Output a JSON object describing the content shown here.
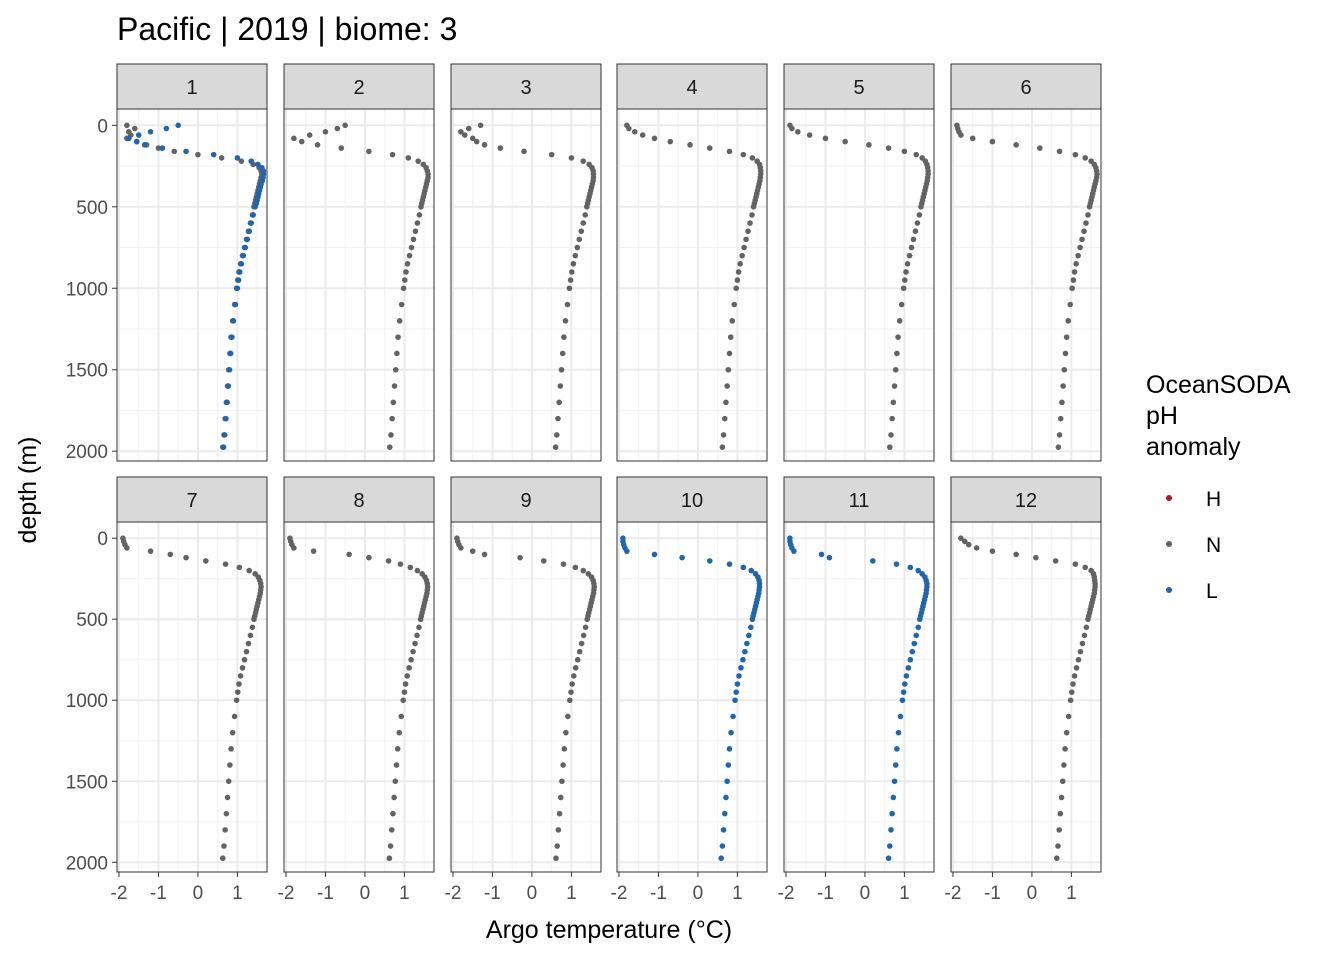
{
  "chart_data": {
    "type": "scatter",
    "title": "Pacific | 2019 | biome: 3",
    "xlabel": "Argo temperature (°C)",
    "ylabel": "depth (m)",
    "xlim": [
      -2.05,
      1.75
    ],
    "ylim": [
      2060,
      -100
    ],
    "x_ticks": [
      -2,
      -1,
      0,
      1
    ],
    "x_tick_labels": [
      "-2",
      "-1",
      "0",
      "1"
    ],
    "y_ticks": [
      0,
      500,
      1000,
      1500,
      2000
    ],
    "y_tick_labels": [
      "0",
      "500",
      "1000",
      "1500",
      "2000"
    ],
    "y_reversed": true,
    "grid": true,
    "facet_layout": {
      "rows": 2,
      "cols": 6
    },
    "legend": {
      "title": [
        "OceanSODA",
        "pH",
        "anomaly"
      ],
      "position": "right",
      "entries": [
        {
          "key": "H",
          "label": "H",
          "color": "#b2182b"
        },
        {
          "key": "N",
          "label": "N",
          "color": "#636363"
        },
        {
          "key": "L",
          "label": "L",
          "color": "#2166ac"
        }
      ]
    },
    "profile_depths": [
      0,
      20,
      40,
      60,
      80,
      100,
      120,
      140,
      160,
      180,
      200,
      220,
      240,
      260,
      280,
      300,
      320,
      340,
      360,
      380,
      400,
      420,
      440,
      460,
      480,
      500,
      550,
      600,
      650,
      700,
      750,
      800,
      850,
      900,
      950,
      1000,
      1100,
      1200,
      1300,
      1400,
      1500,
      1600,
      1700,
      1800,
      1900,
      1975
    ],
    "panels": [
      {
        "label": "1",
        "temps": [
          -1.8,
          -1.8,
          -1.75,
          -1.8,
          -1.7,
          -1.5,
          -1.3,
          -1.0,
          -0.5,
          0.2,
          0.9,
          1.3,
          1.5,
          1.6,
          1.65,
          1.66,
          1.65,
          1.62,
          1.6,
          1.58,
          1.56,
          1.54,
          1.52,
          1.5,
          1.48,
          1.45,
          1.4,
          1.35,
          1.3,
          1.25,
          1.2,
          1.15,
          1.1,
          1.06,
          1.03,
          1.0,
          0.95,
          0.9,
          0.86,
          0.83,
          0.8,
          0.77,
          0.74,
          0.71,
          0.68,
          0.65
        ],
        "series": [
          {
            "key": "N",
            "temps": [
              -1.8,
              -1.6,
              -1.75,
              -1.7,
              -1.8,
              -1.55,
              -1.3,
              -1.0,
              -0.6,
              0.0,
              0.6,
              1.1,
              1.4,
              1.55,
              1.6,
              1.62,
              1.6,
              1.58,
              1.56,
              1.54,
              1.52,
              1.5,
              1.48,
              1.46,
              1.44,
              1.42,
              1.38,
              1.33,
              1.28,
              1.23,
              1.18,
              1.13,
              1.08,
              1.04,
              1.01,
              0.98,
              0.93,
              0.88,
              0.84,
              0.81,
              0.78,
              0.75,
              0.72,
              0.69,
              0.66,
              0.63
            ]
          },
          {
            "key": "L",
            "temps": [
              -0.5,
              -0.8,
              -1.2,
              -1.5,
              -1.75,
              -1.55,
              -1.35,
              -0.9,
              -0.3,
              0.4,
              1.0,
              1.35,
              1.52,
              1.62,
              1.66,
              1.66,
              1.65,
              1.63,
              1.6,
              1.58,
              1.56,
              1.54,
              1.52,
              1.5,
              1.48,
              1.45,
              1.4,
              1.35,
              1.3,
              1.25,
              1.2,
              1.15,
              1.1,
              1.06,
              1.03,
              1.0,
              0.95,
              0.9,
              0.86,
              0.83,
              0.8,
              0.77,
              0.74,
              0.71,
              0.68,
              0.65
            ]
          }
        ]
      },
      {
        "label": "2",
        "series": [
          {
            "key": "N",
            "temps": [
              -0.5,
              -0.7,
              -1.0,
              -1.4,
              -1.8,
              -1.6,
              -1.2,
              -0.6,
              0.1,
              0.7,
              1.1,
              1.35,
              1.48,
              1.55,
              1.58,
              1.6,
              1.6,
              1.58,
              1.56,
              1.54,
              1.52,
              1.5,
              1.48,
              1.46,
              1.44,
              1.42,
              1.38,
              1.33,
              1.28,
              1.23,
              1.18,
              1.13,
              1.08,
              1.04,
              1.01,
              0.98,
              0.93,
              0.88,
              0.84,
              0.81,
              0.78,
              0.75,
              0.72,
              0.69,
              0.66,
              0.63
            ]
          }
        ]
      },
      {
        "label": "3",
        "series": [
          {
            "key": "N",
            "temps": [
              -1.3,
              -1.6,
              -1.8,
              -1.7,
              -1.5,
              -1.4,
              -1.2,
              -0.8,
              -0.2,
              0.5,
              1.0,
              1.3,
              1.45,
              1.52,
              1.55,
              1.56,
              1.56,
              1.55,
              1.53,
              1.51,
              1.49,
              1.47,
              1.45,
              1.43,
              1.41,
              1.39,
              1.35,
              1.3,
              1.25,
              1.2,
              1.15,
              1.1,
              1.05,
              1.01,
              0.98,
              0.95,
              0.9,
              0.85,
              0.81,
              0.78,
              0.75,
              0.72,
              0.69,
              0.66,
              0.63,
              0.6
            ]
          }
        ]
      },
      {
        "label": "4",
        "series": [
          {
            "key": "N",
            "temps": [
              -1.8,
              -1.75,
              -1.6,
              -1.4,
              -1.1,
              -0.7,
              -0.2,
              0.3,
              0.8,
              1.15,
              1.38,
              1.5,
              1.56,
              1.58,
              1.59,
              1.59,
              1.58,
              1.57,
              1.55,
              1.53,
              1.51,
              1.49,
              1.47,
              1.45,
              1.43,
              1.41,
              1.37,
              1.32,
              1.27,
              1.22,
              1.17,
              1.12,
              1.07,
              1.03,
              1.0,
              0.97,
              0.92,
              0.87,
              0.83,
              0.8,
              0.77,
              0.74,
              0.71,
              0.68,
              0.65,
              0.62
            ]
          }
        ]
      },
      {
        "label": "5",
        "series": [
          {
            "key": "N",
            "temps": [
              -1.9,
              -1.85,
              -1.7,
              -1.4,
              -1.0,
              -0.5,
              0.1,
              0.6,
              1.0,
              1.3,
              1.45,
              1.53,
              1.57,
              1.59,
              1.6,
              1.6,
              1.59,
              1.58,
              1.56,
              1.54,
              1.52,
              1.5,
              1.48,
              1.46,
              1.44,
              1.42,
              1.38,
              1.33,
              1.28,
              1.23,
              1.18,
              1.13,
              1.08,
              1.04,
              1.01,
              0.98,
              0.93,
              0.88,
              0.84,
              0.81,
              0.78,
              0.75,
              0.72,
              0.69,
              0.66,
              0.63
            ]
          }
        ]
      },
      {
        "label": "6",
        "series": [
          {
            "key": "N",
            "temps": [
              -1.9,
              -1.88,
              -1.85,
              -1.8,
              -1.5,
              -1.0,
              -0.4,
              0.2,
              0.7,
              1.1,
              1.35,
              1.5,
              1.58,
              1.62,
              1.64,
              1.65,
              1.64,
              1.62,
              1.6,
              1.58,
              1.56,
              1.54,
              1.52,
              1.5,
              1.48,
              1.46,
              1.42,
              1.37,
              1.32,
              1.27,
              1.22,
              1.17,
              1.12,
              1.08,
              1.05,
              1.02,
              0.97,
              0.92,
              0.88,
              0.85,
              0.82,
              0.79,
              0.76,
              0.73,
              0.7,
              0.67
            ]
          }
        ]
      },
      {
        "label": "7",
        "series": [
          {
            "key": "N",
            "temps": [
              -1.9,
              -1.88,
              -1.85,
              -1.8,
              -1.2,
              -0.7,
              -0.3,
              0.2,
              0.7,
              1.05,
              1.3,
              1.45,
              1.53,
              1.57,
              1.59,
              1.6,
              1.59,
              1.58,
              1.56,
              1.54,
              1.52,
              1.5,
              1.48,
              1.46,
              1.44,
              1.42,
              1.38,
              1.33,
              1.28,
              1.23,
              1.18,
              1.13,
              1.08,
              1.04,
              1.01,
              0.98,
              0.93,
              0.88,
              0.84,
              0.81,
              0.78,
              0.75,
              0.72,
              0.69,
              0.66,
              0.63
            ]
          }
        ]
      },
      {
        "label": "8",
        "series": [
          {
            "key": "N",
            "temps": [
              -1.9,
              -1.88,
              -1.85,
              -1.8,
              -1.3,
              -0.4,
              0.1,
              0.6,
              0.9,
              1.15,
              1.33,
              1.45,
              1.52,
              1.56,
              1.58,
              1.59,
              1.58,
              1.57,
              1.55,
              1.53,
              1.51,
              1.49,
              1.47,
              1.45,
              1.43,
              1.41,
              1.37,
              1.32,
              1.27,
              1.22,
              1.17,
              1.12,
              1.07,
              1.03,
              1.0,
              0.97,
              0.92,
              0.87,
              0.83,
              0.8,
              0.77,
              0.74,
              0.71,
              0.68,
              0.65,
              0.62
            ]
          }
        ]
      },
      {
        "label": "9",
        "series": [
          {
            "key": "N",
            "temps": [
              -1.9,
              -1.88,
              -1.85,
              -1.8,
              -1.5,
              -1.2,
              -0.3,
              0.3,
              0.8,
              1.1,
              1.3,
              1.43,
              1.51,
              1.55,
              1.57,
              1.58,
              1.57,
              1.56,
              1.54,
              1.52,
              1.5,
              1.48,
              1.46,
              1.44,
              1.42,
              1.4,
              1.36,
              1.31,
              1.26,
              1.21,
              1.16,
              1.11,
              1.06,
              1.02,
              0.99,
              0.96,
              0.91,
              0.86,
              0.82,
              0.79,
              0.76,
              0.73,
              0.7,
              0.67,
              0.64,
              0.61
            ]
          }
        ]
      },
      {
        "label": "10",
        "series": [
          {
            "key": "L",
            "temps": [
              -1.9,
              -1.9,
              -1.88,
              -1.85,
              -1.8,
              -1.1,
              -0.4,
              0.3,
              0.8,
              1.15,
              1.35,
              1.46,
              1.52,
              1.55,
              1.56,
              1.56,
              1.55,
              1.54,
              1.52,
              1.5,
              1.48,
              1.46,
              1.44,
              1.42,
              1.4,
              1.38,
              1.34,
              1.29,
              1.24,
              1.19,
              1.14,
              1.09,
              1.04,
              1.0,
              0.97,
              0.94,
              0.89,
              0.84,
              0.8,
              0.77,
              0.74,
              0.71,
              0.68,
              0.65,
              0.62,
              0.59
            ]
          }
        ]
      },
      {
        "label": "11",
        "series": [
          {
            "key": "L",
            "temps": [
              -1.9,
              -1.9,
              -1.88,
              -1.85,
              -1.8,
              -1.1,
              -0.9,
              0.2,
              0.8,
              1.15,
              1.35,
              1.45,
              1.52,
              1.55,
              1.57,
              1.57,
              1.56,
              1.55,
              1.53,
              1.51,
              1.49,
              1.47,
              1.45,
              1.43,
              1.41,
              1.39,
              1.35,
              1.3,
              1.25,
              1.2,
              1.15,
              1.1,
              1.05,
              1.01,
              0.98,
              0.95,
              0.9,
              0.85,
              0.81,
              0.78,
              0.75,
              0.72,
              0.69,
              0.66,
              0.63,
              0.6
            ]
          }
        ]
      },
      {
        "label": "12",
        "series": [
          {
            "key": "N",
            "temps": [
              -1.8,
              -1.7,
              -1.6,
              -1.4,
              -1.0,
              -0.4,
              0.1,
              0.6,
              1.1,
              1.35,
              1.5,
              1.56,
              1.58,
              1.59,
              1.6,
              1.6,
              1.59,
              1.58,
              1.56,
              1.54,
              1.52,
              1.5,
              1.48,
              1.46,
              1.44,
              1.42,
              1.38,
              1.33,
              1.28,
              1.23,
              1.18,
              1.13,
              1.08,
              1.04,
              1.01,
              0.98,
              0.93,
              0.88,
              0.84,
              0.81,
              0.78,
              0.75,
              0.72,
              0.69,
              0.66,
              0.63
            ]
          }
        ]
      }
    ]
  }
}
